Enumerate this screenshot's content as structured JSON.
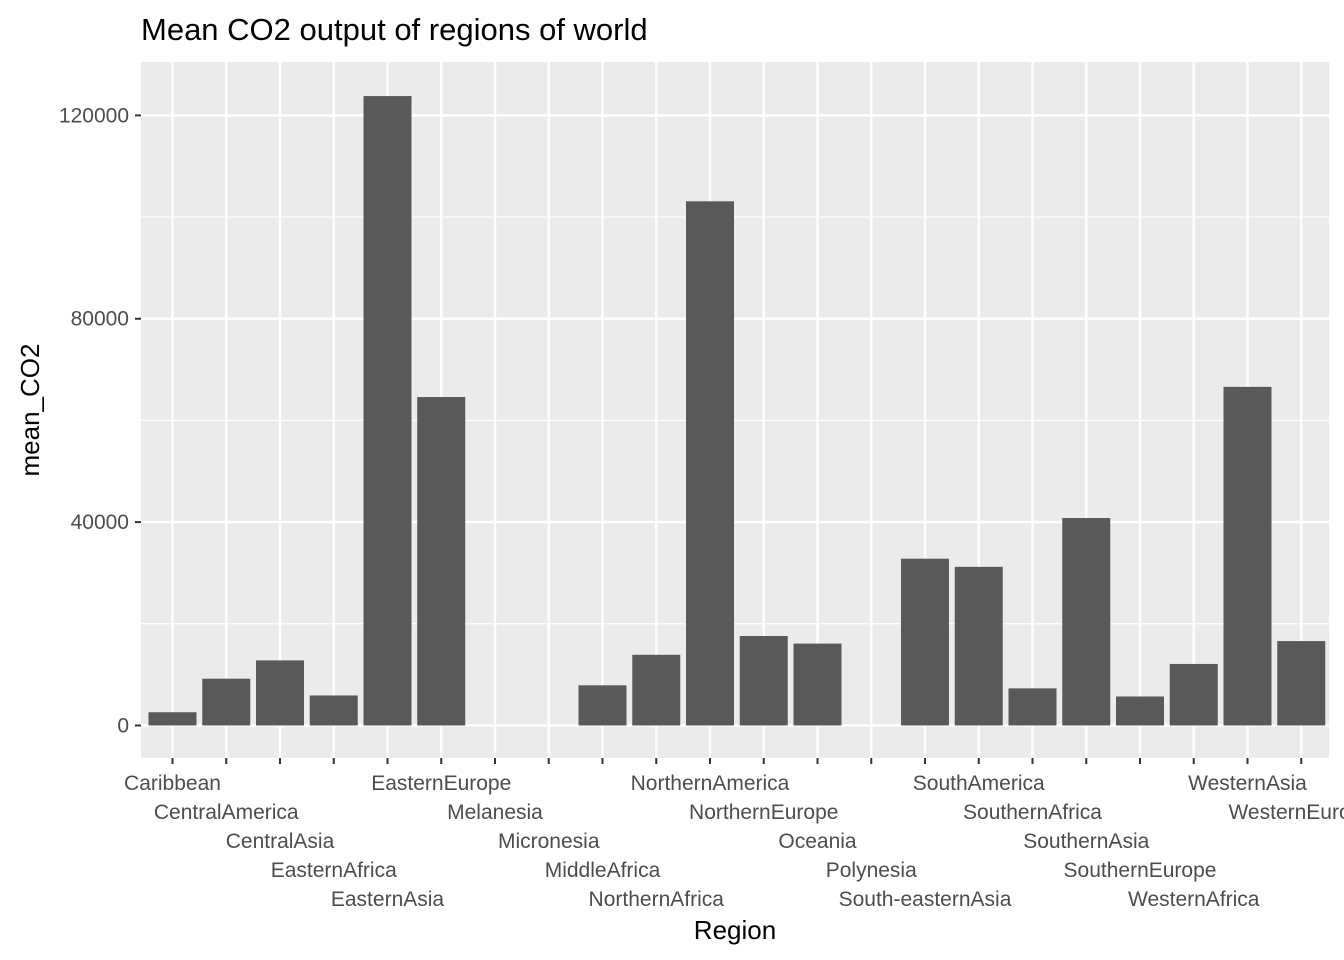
{
  "chart_data": {
    "type": "bar",
    "title": "Mean CO2 output of regions of world",
    "xlabel": "Region",
    "ylabel": "mean_CO2",
    "categories": [
      "Caribbean",
      "CentralAmerica",
      "CentralAsia",
      "EasternAfrica",
      "EasternAsia",
      "EasternEurope",
      "Melanesia",
      "Micronesia",
      "MiddleAfrica",
      "NorthernAfrica",
      "NorthernAmerica",
      "NorthernEurope",
      "Oceania",
      "Polynesia",
      "South-easternAsia",
      "SouthAmerica",
      "SouthernAfrica",
      "SouthernAsia",
      "SouthernEurope",
      "WesternAfrica",
      "WesternAsia",
      "WesternEurope"
    ],
    "values": [
      2600,
      9200,
      12800,
      5900,
      123800,
      64600,
      0,
      0,
      7900,
      13900,
      103100,
      17600,
      16100,
      0,
      32800,
      31200,
      7300,
      40800,
      5700,
      12100,
      66600,
      16600
    ],
    "yticks": [
      0,
      40000,
      80000,
      120000
    ],
    "ytick_labels": [
      "0",
      "40000",
      "80000",
      "120000"
    ],
    "ylim": [
      -6400,
      130500
    ],
    "grid": true,
    "bar_color": "#595959",
    "panel_background": "#ebebeb",
    "gridline_color": "#ffffff",
    "legend": "none"
  }
}
